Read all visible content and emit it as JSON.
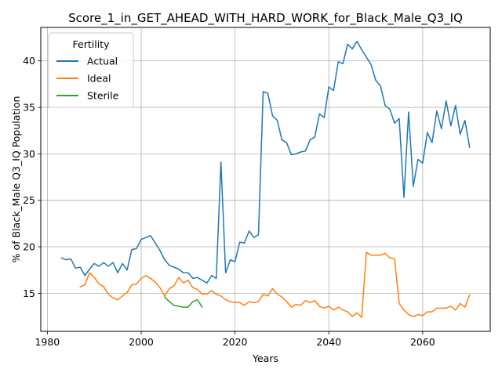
{
  "chart_data": {
    "type": "line",
    "title": "Score_1_in_GET_AHEAD_WITH_HARD_WORK_for_Black_Male_Q3_IQ",
    "xlabel": "Years",
    "ylabel": "% of Black_Male Q3_IQ Population",
    "xlim": [
      1978.6,
      2074.4
    ],
    "ylim": [
      10.9,
      43.6
    ],
    "xticks": [
      1980,
      2000,
      2020,
      2040,
      2060
    ],
    "yticks": [
      15,
      20,
      25,
      30,
      35,
      40
    ],
    "grid": true,
    "legend": {
      "title": "Fertility",
      "placement": "top-left"
    },
    "series": [
      {
        "name": "Actual",
        "color": "#1f77b4",
        "x": [
          1983,
          1984,
          1985,
          1986,
          1987,
          1988,
          1989,
          1990,
          1991,
          1992,
          1993,
          1994,
          1995,
          1996,
          1997,
          1998,
          1999,
          2000,
          2001,
          2002,
          2003,
          2004,
          2005,
          2006,
          2007,
          2008,
          2009,
          2010,
          2011,
          2012,
          2013,
          2014,
          2015,
          2016,
          2017,
          2018,
          2019,
          2020,
          2021,
          2022,
          2023,
          2024,
          2025,
          2026,
          2027,
          2028,
          2029,
          2030,
          2031,
          2032,
          2033,
          2034,
          2035,
          2036,
          2037,
          2038,
          2039,
          2040,
          2041,
          2042,
          2043,
          2044,
          2045,
          2046,
          2047,
          2048,
          2049,
          2050,
          2051,
          2052,
          2053,
          2054,
          2055,
          2056,
          2057,
          2058,
          2059,
          2060,
          2061,
          2062,
          2063,
          2064,
          2065,
          2066,
          2067,
          2068,
          2069,
          2070
        ],
        "y": [
          18.8,
          18.6,
          18.7,
          17.7,
          17.8,
          16.9,
          17.6,
          18.2,
          17.9,
          18.3,
          17.9,
          18.3,
          17.2,
          18.2,
          17.5,
          19.7,
          19.8,
          20.8,
          21.0,
          21.2,
          20.4,
          19.6,
          18.6,
          18.0,
          17.8,
          17.6,
          17.2,
          17.2,
          16.6,
          16.7,
          16.4,
          16.1,
          16.9,
          16.6,
          29.1,
          17.2,
          18.6,
          18.4,
          20.5,
          20.4,
          21.7,
          21.0,
          21.3,
          36.7,
          36.5,
          34.1,
          33.6,
          31.5,
          31.2,
          29.9,
          30.0,
          30.2,
          30.3,
          31.5,
          31.8,
          34.3,
          33.9,
          37.2,
          36.8,
          39.9,
          39.7,
          41.8,
          41.3,
          42.1,
          41.2,
          40.4,
          39.6,
          37.9,
          37.3,
          35.2,
          34.8,
          33.3,
          33.8,
          25.3,
          34.5,
          26.5,
          29.4,
          29.0,
          32.3,
          31.2,
          34.6,
          32.7,
          35.7,
          33.0,
          35.2,
          32.1,
          33.6,
          30.7
        ]
      },
      {
        "name": "Ideal",
        "color": "#ff7f0e",
        "x": [
          1987,
          1988,
          1989,
          1990,
          1991,
          1992,
          1993,
          1994,
          1995,
          1996,
          1997,
          1998,
          1999,
          2000,
          2001,
          2002,
          2003,
          2004,
          2005,
          2006,
          2007,
          2008,
          2009,
          2010,
          2011,
          2012,
          2013,
          2014,
          2015,
          2016,
          2017,
          2018,
          2019,
          2020,
          2021,
          2022,
          2023,
          2024,
          2025,
          2026,
          2027,
          2028,
          2029,
          2030,
          2031,
          2032,
          2033,
          2034,
          2035,
          2036,
          2037,
          2038,
          2039,
          2040,
          2041,
          2042,
          2043,
          2044,
          2045,
          2046,
          2047,
          2048,
          2049,
          2050,
          2051,
          2052,
          2053,
          2054,
          2055,
          2056,
          2057,
          2058,
          2059,
          2060,
          2061,
          2062,
          2063,
          2064,
          2065,
          2066,
          2067,
          2068,
          2069,
          2070
        ],
        "y": [
          15.7,
          15.9,
          17.2,
          16.7,
          16.0,
          15.7,
          14.9,
          14.5,
          14.3,
          14.7,
          15.1,
          15.9,
          16.0,
          16.6,
          16.9,
          16.6,
          16.2,
          15.6,
          14.7,
          15.5,
          15.8,
          16.7,
          16.1,
          16.4,
          15.6,
          15.4,
          14.9,
          14.9,
          15.3,
          14.9,
          14.7,
          14.3,
          14.1,
          14.0,
          14.0,
          13.7,
          14.1,
          14.0,
          14.1,
          14.9,
          14.7,
          15.5,
          14.9,
          14.6,
          14.1,
          13.5,
          13.8,
          13.7,
          14.2,
          14.0,
          14.2,
          13.6,
          13.4,
          13.6,
          13.2,
          13.5,
          13.2,
          13.0,
          12.5,
          12.9,
          12.4,
          19.4,
          19.1,
          19.1,
          19.1,
          19.3,
          18.8,
          18.7,
          13.9,
          13.2,
          12.7,
          12.5,
          12.7,
          12.6,
          13.0,
          13.0,
          13.4,
          13.4,
          13.4,
          13.6,
          13.2,
          13.9,
          13.5,
          14.8
        ]
      },
      {
        "name": "Sterile",
        "color": "#2ca02c",
        "x": [
          2005,
          2006,
          2007,
          2008,
          2009,
          2010,
          2011,
          2012,
          2013
        ],
        "y": [
          14.6,
          14.1,
          13.7,
          13.6,
          13.5,
          13.5,
          14.1,
          14.3,
          13.5
        ]
      }
    ]
  }
}
